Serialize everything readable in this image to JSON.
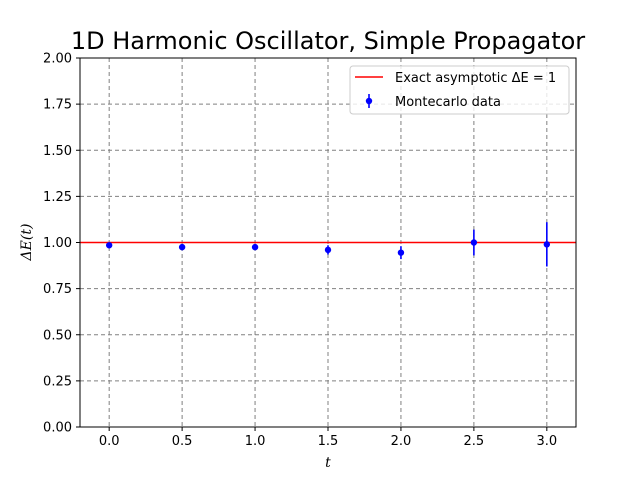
{
  "chart_data": {
    "type": "scatter",
    "title": "1D Harmonic Oscillator, Simple Propagator",
    "xlabel": "t",
    "ylabel": "ΔE(t)",
    "xlim": [
      -0.2,
      3.2
    ],
    "ylim": [
      0.0,
      2.0
    ],
    "xticks": [
      "0.0",
      "0.5",
      "1.0",
      "1.5",
      "2.0",
      "2.5",
      "3.0"
    ],
    "xtick_values": [
      0.0,
      0.5,
      1.0,
      1.5,
      2.0,
      2.5,
      3.0
    ],
    "yticks": [
      "0.00",
      "0.25",
      "0.50",
      "0.75",
      "1.00",
      "1.25",
      "1.50",
      "1.75",
      "2.00"
    ],
    "ytick_values": [
      0.0,
      0.25,
      0.5,
      0.75,
      1.0,
      1.25,
      1.5,
      1.75,
      2.0
    ],
    "grid": true,
    "legend_position": "top-right",
    "series": [
      {
        "name": "Exact asymptotic ΔE = 1",
        "kind": "line",
        "color": "#ff0000",
        "x": [
          -0.2,
          3.2
        ],
        "y": [
          1.0,
          1.0
        ]
      },
      {
        "name": "Montecarlo data",
        "kind": "errorbar",
        "color": "#0000ff",
        "x": [
          0.0,
          0.5,
          1.0,
          1.5,
          2.0,
          2.5,
          3.0
        ],
        "y": [
          0.985,
          0.975,
          0.975,
          0.96,
          0.945,
          1.0,
          0.99
        ],
        "yerr": [
          0.01,
          0.01,
          0.01,
          0.025,
          0.035,
          0.07,
          0.12
        ]
      }
    ]
  }
}
